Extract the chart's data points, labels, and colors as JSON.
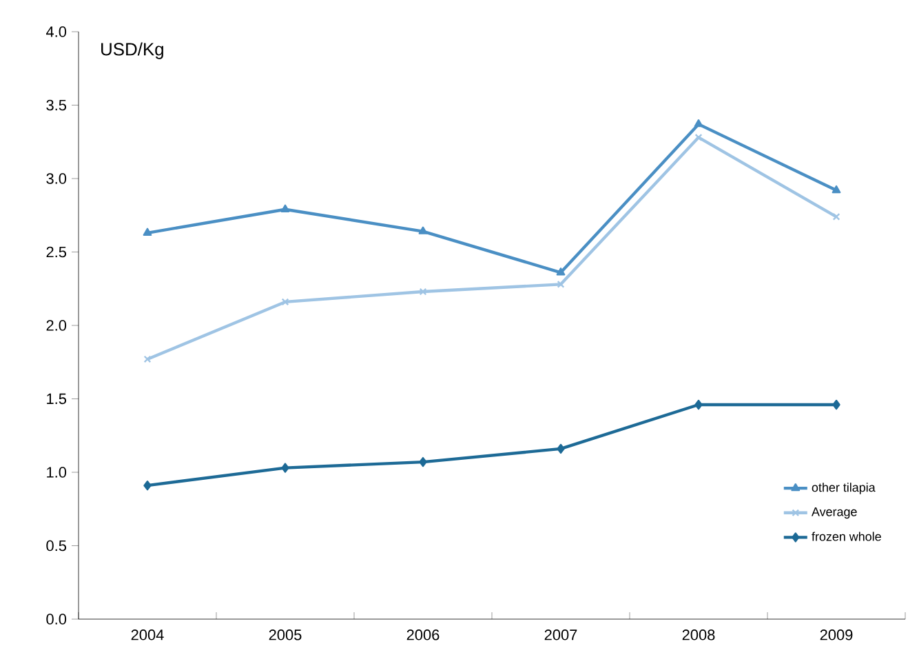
{
  "chart_data": {
    "type": "line",
    "ylabel": "USD/Kg",
    "categories": [
      "2004",
      "2005",
      "2006",
      "2007",
      "2008",
      "2009"
    ],
    "series": [
      {
        "name": "other tilapia",
        "color": "#4a8fc4",
        "marker": "triangle",
        "values": [
          2.63,
          2.79,
          2.64,
          2.36,
          3.37,
          2.92
        ]
      },
      {
        "name": "Average",
        "color": "#9fc4e4",
        "marker": "cross",
        "values": [
          1.77,
          2.16,
          2.23,
          2.28,
          3.28,
          2.74
        ]
      },
      {
        "name": "frozen whole",
        "color": "#1d6a96",
        "marker": "diamond",
        "values": [
          0.91,
          1.03,
          1.07,
          1.16,
          1.46,
          1.46
        ]
      }
    ],
    "ylim": [
      0,
      4.0
    ],
    "yticks": [
      {
        "value": 0,
        "label": "0.0"
      },
      {
        "value": 0.5,
        "label": "0.5"
      },
      {
        "value": 1,
        "label": "1.0"
      },
      {
        "value": 1.5,
        "label": "1.5"
      },
      {
        "value": 2,
        "label": "2.0"
      },
      {
        "value": 2.5,
        "label": "2.5"
      },
      {
        "value": 3,
        "label": "3.0"
      },
      {
        "value": 3.5,
        "label": "3.5"
      },
      {
        "value": 4,
        "label": "4.0"
      }
    ],
    "grid": false,
    "legend": "bottom right",
    "line_style": "solid"
  }
}
